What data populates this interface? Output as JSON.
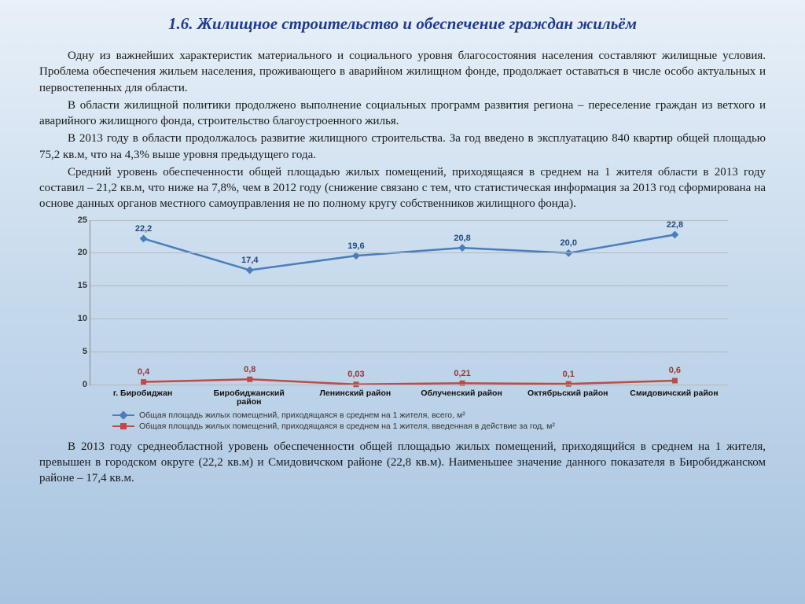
{
  "title": "1.6. Жилищное строительство и обеспечение граждан жильём",
  "paragraphs": {
    "p1": "Одну из важнейших характеристик материального и социального уровня благосостояния населения составляют жилищные условия. Проблема обеспечения жильем населения, проживающего в аварийном жилищном фонде, продолжает оставаться в числе особо актуальных и первостепенных для области.",
    "p2": "В области жилищной политики продолжено выполнение социальных программ развития региона – переселение граждан из ветхого и аварийного жилищного фонда, строительство благоустроенного жилья.",
    "p3": "В 2013 году в области продолжалось развитие жилищного строительства. За год введено в эксплуатацию 840 квартир общей площадью 75,2 кв.м, что на 4,3% выше уровня предыдущего года.",
    "p4": "Средний уровень обеспеченности общей площадью жилых помещений, приходящаяся в среднем на 1 жителя области в 2013 году составил – 21,2 кв.м, что ниже на 7,8%, чем в 2012 году (снижение связано с тем, что статистическая информация за 2013 год сформирована на основе данных органов местного самоуправления не по полному кругу собственников жилищного фонда).",
    "p5": "В 2013 году среднеобластной уровень обеспеченности общей площадью жилых помещений, приходящийся в среднем на 1 жителя, превышен в городском округе (22,2 кв.м) и Смидовичском районе (22,8 кв.м). Наименьшее значение данного показателя в Биробиджанском районе – 17,4 кв.м."
  },
  "chart": {
    "type": "line",
    "ylim": [
      0,
      25
    ],
    "ytick_step": 5,
    "categories": [
      "г. Биробиджан",
      "Биробиджанский\nрайон",
      "Ленинский район",
      "Облученский район",
      "Октябрьский район",
      "Смидовичский район"
    ],
    "series1": {
      "label": "Общая площадь жилых помещений, приходящаяся в среднем на 1 жителя, всего, м²",
      "values": [
        22.2,
        17.4,
        19.6,
        20.8,
        20.0,
        22.8
      ],
      "display": [
        "22,2",
        "17,4",
        "19,6",
        "20,8",
        "20,0",
        "22,8"
      ],
      "color": "#4a7ebb",
      "marker": "diamond"
    },
    "series2": {
      "label": "Общая площадь жилых помещений, приходящаяся в среднем на 1 жителя, введенная в действие за год, м²",
      "values": [
        0.4,
        0.8,
        0.03,
        0.21,
        0.1,
        0.6
      ],
      "display": [
        "0,4",
        "0,8",
        "0,03",
        "0,21",
        "0,1",
        "0,6"
      ],
      "color": "#be4b48",
      "marker": "square"
    },
    "grid_color": "#b8b8b8",
    "line_width": 2.5,
    "marker_size": 7
  }
}
